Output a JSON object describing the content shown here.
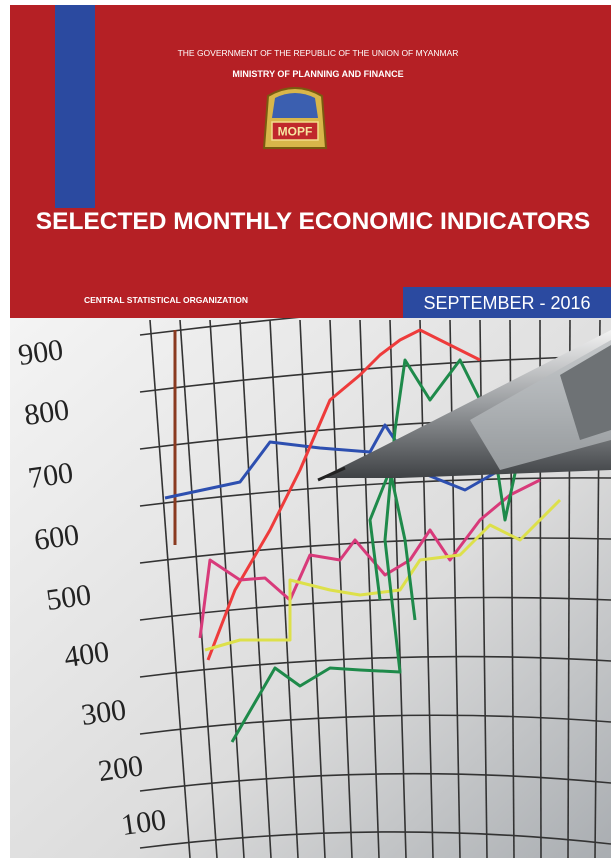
{
  "header": {
    "government": "THE GOVERNMENT OF THE REPUBLIC OF THE UNION OF MYANMAR",
    "ministry": "MINISTRY OF PLANNING AND FINANCE",
    "logo": "MOPF"
  },
  "title": "SELECTED MONTHLY ECONOMIC INDICATORS",
  "organization": "CENTRAL STATISTICAL ORGANIZATION",
  "date": "SEPTEMBER - 2016",
  "cover_image": {
    "axis_labels": [
      "900",
      "800",
      "700",
      "600",
      "500",
      "400",
      "300",
      "200",
      "100"
    ]
  }
}
